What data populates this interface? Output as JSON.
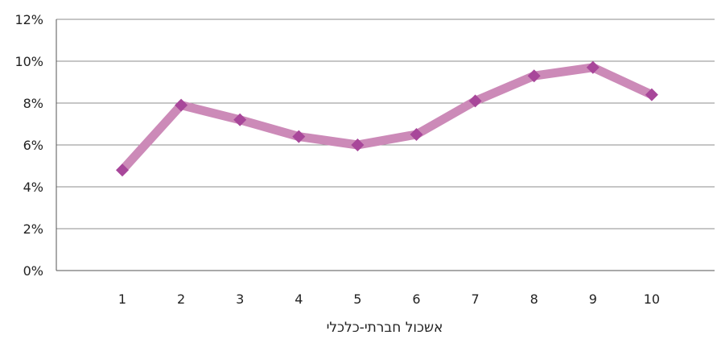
{
  "chart_data": {
    "type": "line",
    "title": "",
    "xlabel": "אשכול חברתי-כלכלי",
    "ylabel": "",
    "categories": [
      "1",
      "2",
      "3",
      "4",
      "5",
      "6",
      "7",
      "8",
      "9",
      "10"
    ],
    "series": [
      {
        "values": [
          4.8,
          7.9,
          7.2,
          6.4,
          6.0,
          6.5,
          8.1,
          9.3,
          9.7,
          8.4
        ]
      }
    ],
    "ylim": [
      0,
      12
    ],
    "yticks": [
      0,
      2,
      4,
      6,
      8,
      10,
      12
    ],
    "ytick_labels": [
      "0%",
      "2%",
      "4%",
      "6%",
      "8%",
      "10%",
      "12%"
    ],
    "grid": true,
    "legend": "none",
    "colors": {
      "line": "#cc8ab8",
      "marker": "#a8479a",
      "grid": "#8c8c8c",
      "axis": "#555555"
    }
  }
}
